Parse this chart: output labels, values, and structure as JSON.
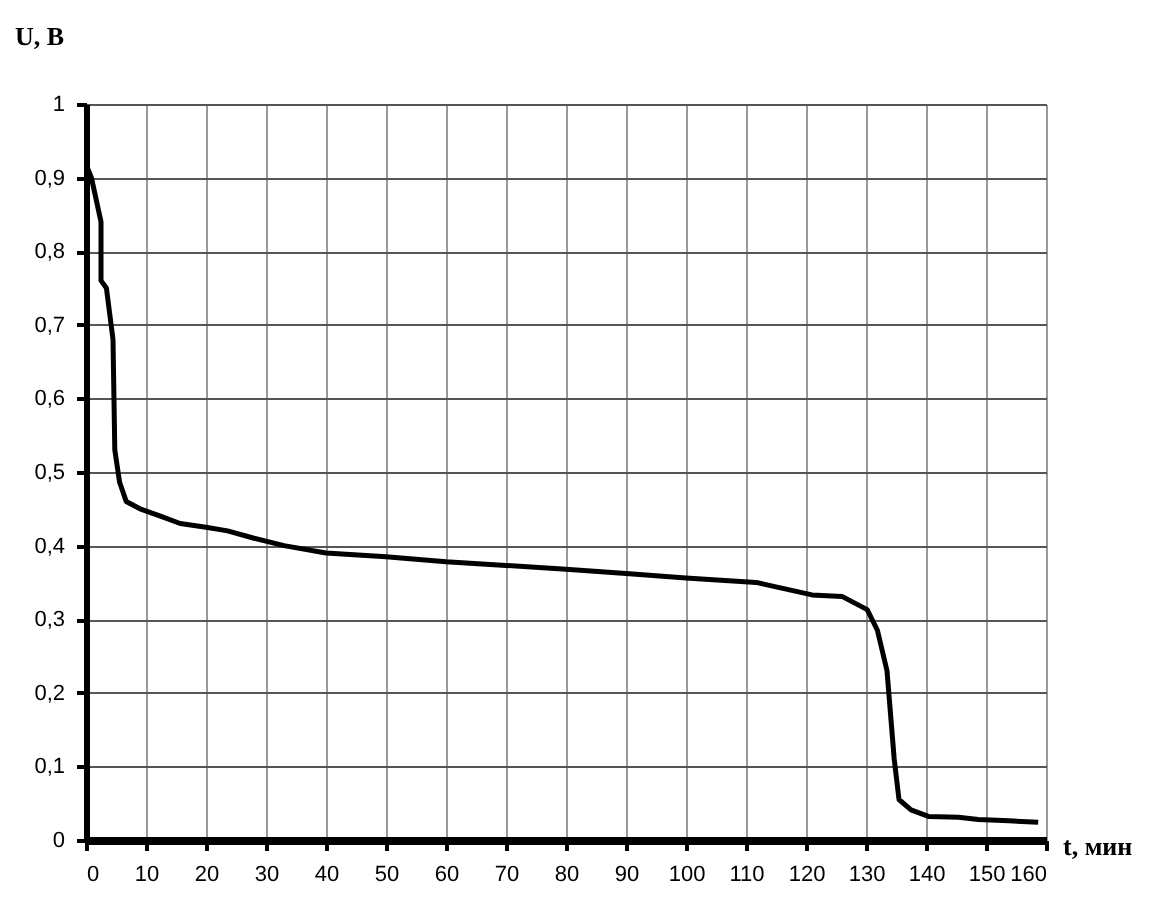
{
  "chart_data": {
    "type": "line",
    "xlabel": "t, мин",
    "ylabel": "U, В",
    "x": [
      0.2,
      0.9,
      2.5,
      2.5,
      3.4,
      4.5,
      4.8,
      5.6,
      6.7,
      9,
      12.4,
      15.7,
      20,
      23.6,
      28,
      33,
      40,
      50,
      60,
      70,
      80,
      90,
      100,
      111.7,
      115,
      121,
      126,
      130.2,
      131.9,
      133.5,
      134.7,
      135.5,
      137.5,
      140.4,
      145.4,
      148.7,
      153.8,
      158.7
    ],
    "series": [
      {
        "color": "#000000",
        "values": [
          0.914,
          0.9,
          0.84,
          0.76,
          0.75,
          0.68,
          0.53,
          0.486,
          0.46,
          0.45,
          0.44,
          0.43,
          0.425,
          0.42,
          0.41,
          0.4,
          0.39,
          0.385,
          0.378,
          0.373,
          0.368,
          0.362,
          0.356,
          0.35,
          0.344,
          0.333,
          0.331,
          0.313,
          0.285,
          0.23,
          0.11,
          0.055,
          0.041,
          0.032,
          0.031,
          0.028,
          0.026,
          0.024
        ]
      }
    ],
    "xlim": [
      0,
      160
    ],
    "xticks": [
      0,
      10,
      20,
      30,
      40,
      50,
      60,
      70,
      80,
      90,
      100,
      110,
      120,
      130,
      140,
      150,
      160
    ],
    "ylim": [
      0,
      1
    ],
    "yticks": [
      {
        "value": 0,
        "label": "0"
      },
      {
        "value": 0.1,
        "label": "0,1"
      },
      {
        "value": 0.2,
        "label": "0,2"
      },
      {
        "value": 0.3,
        "label": "0,3"
      },
      {
        "value": 0.4,
        "label": "0,4"
      },
      {
        "value": 0.5,
        "label": "0,5"
      },
      {
        "value": 0.6,
        "label": "0,6"
      },
      {
        "value": 0.7,
        "label": "0,7"
      },
      {
        "value": 0.8,
        "label": "0,8"
      },
      {
        "value": 0.9,
        "label": "0,9"
      },
      {
        "value": 1,
        "label": "1"
      }
    ],
    "grid": true
  }
}
